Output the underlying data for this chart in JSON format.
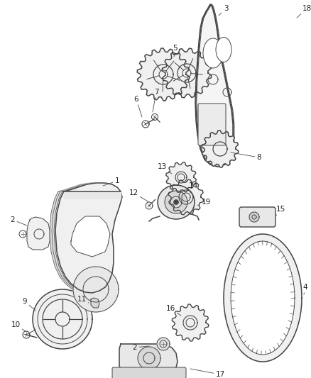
{
  "bg_color": "#ffffff",
  "line_color": "#444444",
  "label_color": "#222222",
  "label_fs": 7.5,
  "lw_main": 1.1,
  "lw_thin": 0.7
}
